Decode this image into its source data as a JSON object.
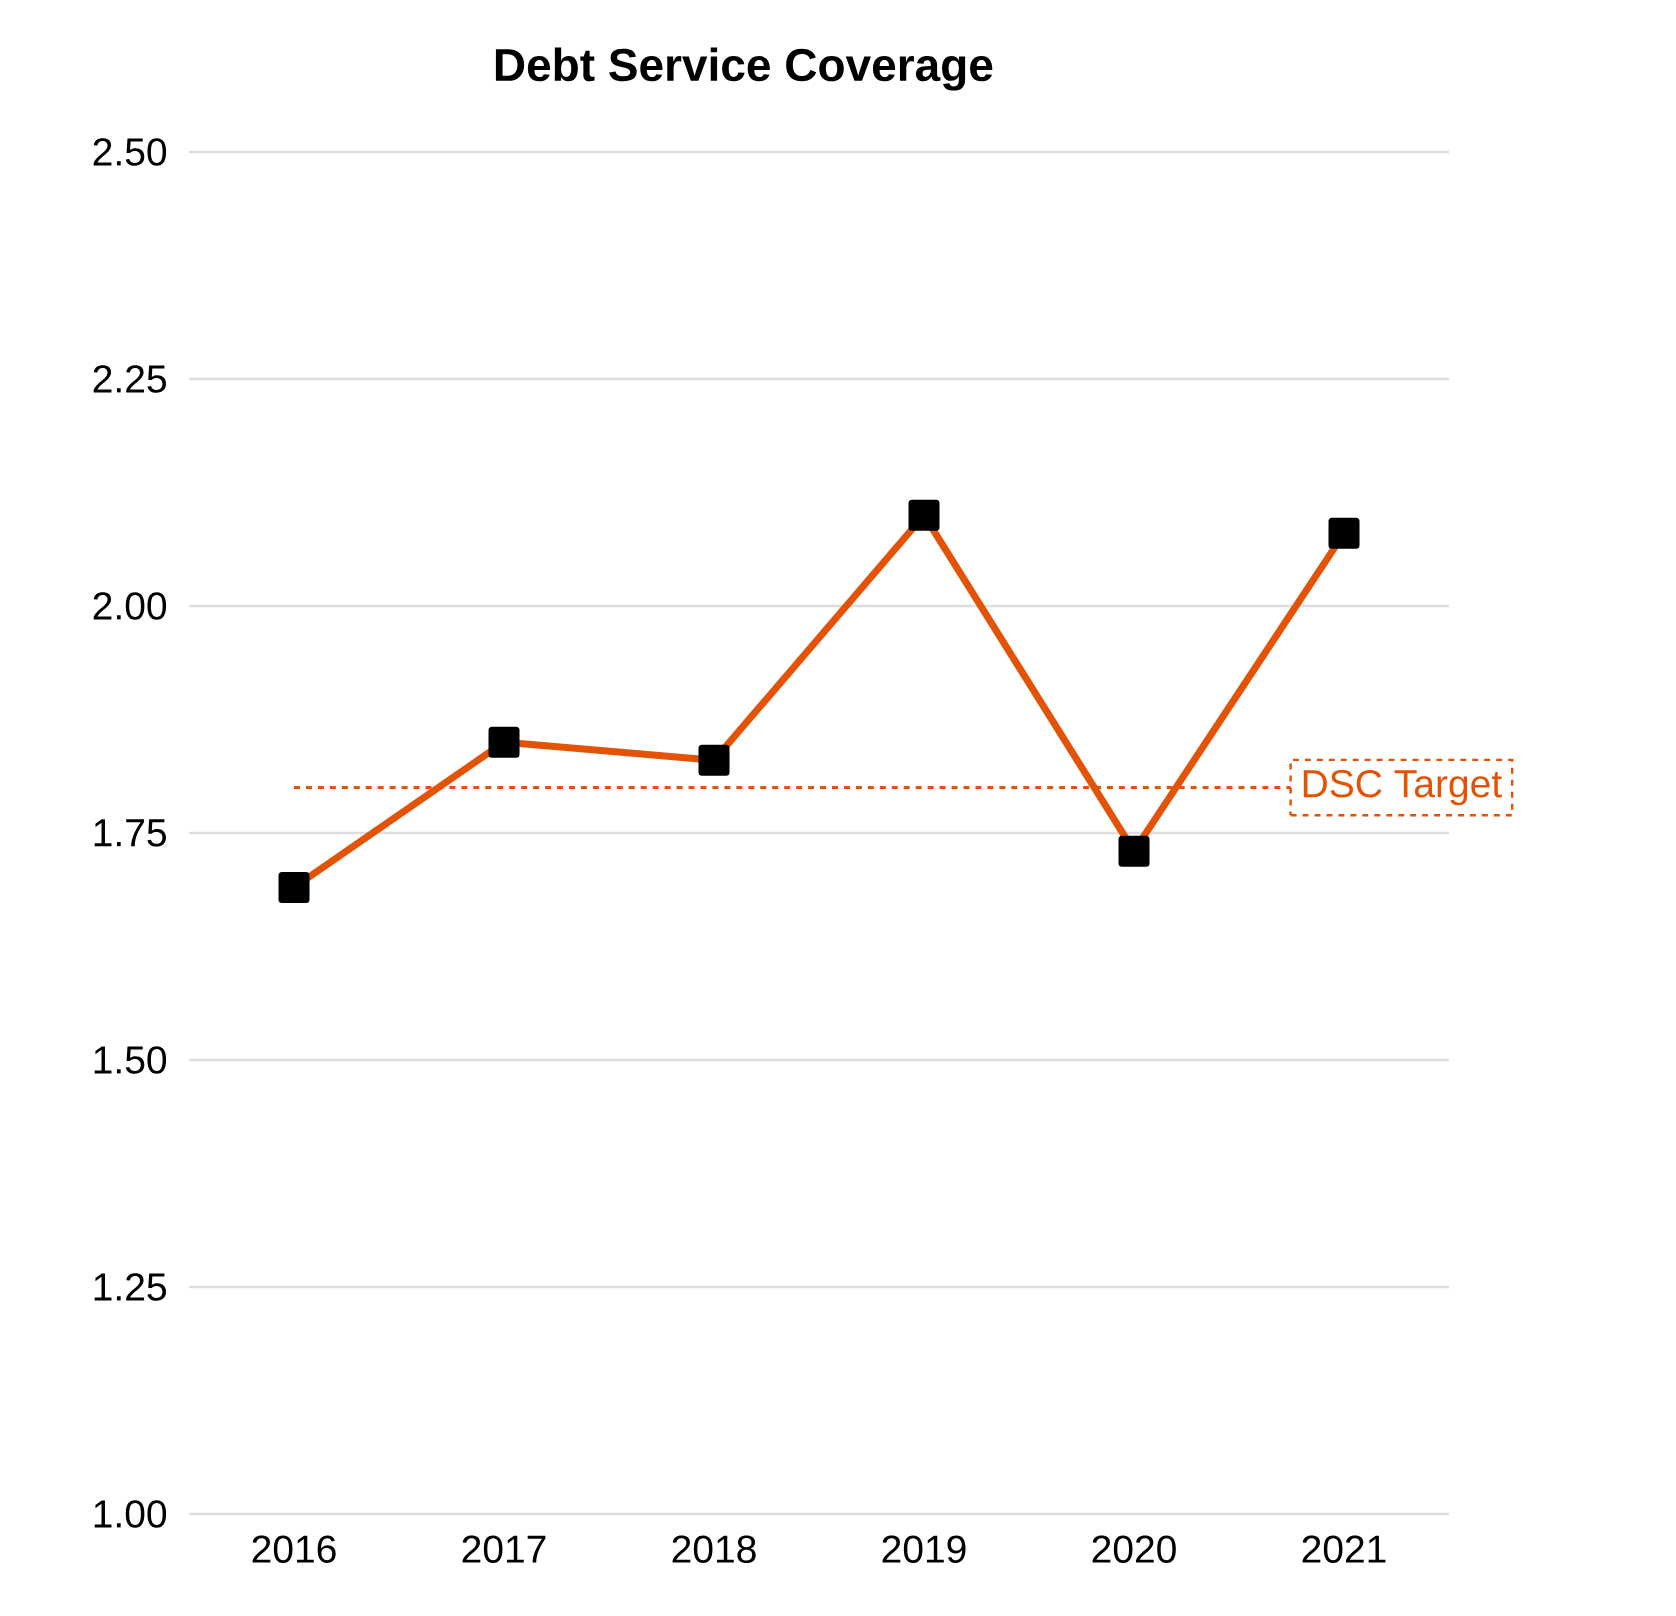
{
  "chart_data": {
    "type": "line",
    "title": "Debt Service Coverage",
    "categories": [
      "2016",
      "2017",
      "2018",
      "2019",
      "2020",
      "2021"
    ],
    "series": [
      {
        "color": "#e35205",
        "values": [
          1.69,
          1.85,
          1.83,
          2.1,
          1.73,
          2.08
        ]
      }
    ],
    "marker": "square",
    "grid": "y",
    "ylim": [
      1.0,
      2.5
    ],
    "yticks": [
      {
        "value": 1.0,
        "label": "1.00"
      },
      {
        "value": 1.25,
        "label": "1.25"
      },
      {
        "value": 1.5,
        "label": "1.50"
      },
      {
        "value": 1.75,
        "label": "1.75"
      },
      {
        "value": 2.0,
        "label": "2.00"
      },
      {
        "value": 2.25,
        "label": "2.25"
      },
      {
        "value": 2.5,
        "label": "2.50"
      }
    ],
    "ref_lines": [
      {
        "axis": "y",
        "value": 1.8,
        "label": "DSC Target",
        "color": "#e35205",
        "line_style": "dashed"
      }
    ]
  }
}
